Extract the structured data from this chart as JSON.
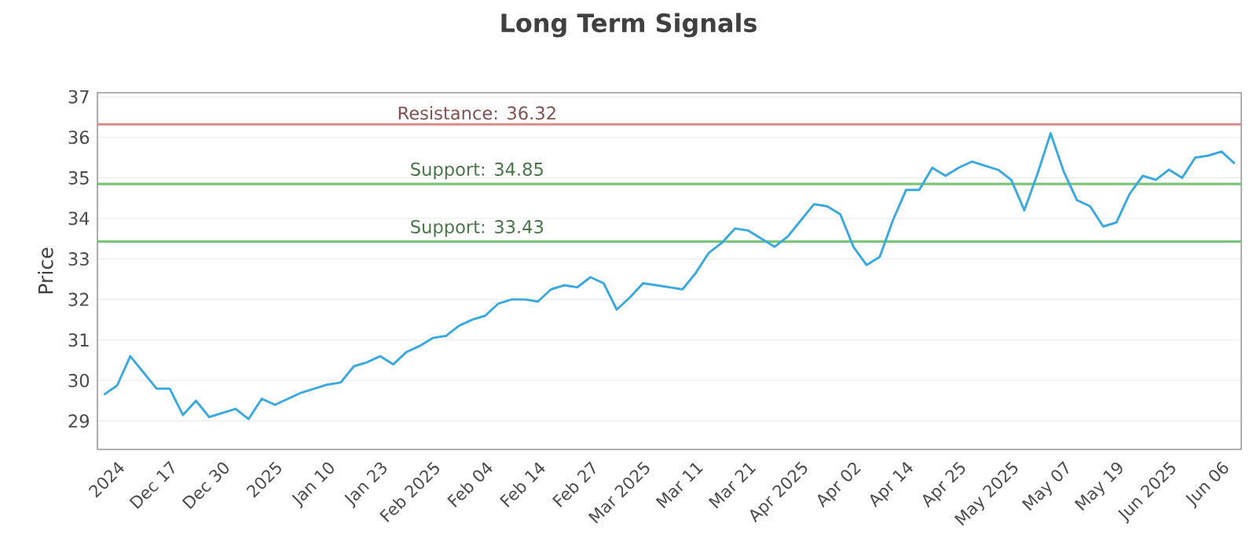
{
  "chart_data": {
    "type": "line",
    "title": "Long Term Signals",
    "ylabel": "Price",
    "categories": [
      null,
      "2024",
      null,
      null,
      null,
      "Dec 17",
      null,
      null,
      null,
      "Dec 30",
      null,
      null,
      null,
      "2025",
      null,
      null,
      null,
      "Jan 10",
      null,
      null,
      null,
      "Jan 23",
      null,
      null,
      null,
      "Feb 2025",
      null,
      null,
      null,
      "Feb 04",
      null,
      null,
      null,
      "Feb 14",
      null,
      null,
      null,
      "Feb 27",
      null,
      null,
      null,
      "Mar 2025",
      null,
      null,
      null,
      "Mar 11",
      null,
      null,
      null,
      "Mar 21",
      null,
      null,
      null,
      "Apr 2025",
      null,
      null,
      null,
      "Apr 02",
      null,
      null,
      null,
      "Apr 14",
      null,
      null,
      null,
      "Apr 25",
      null,
      null,
      null,
      "May 2025",
      null,
      null,
      null,
      "May 07",
      null,
      null,
      null,
      "May 19",
      null,
      null,
      null,
      "Jun 2025",
      null,
      null,
      null,
      "Jun 06",
      null
    ],
    "series": [
      {
        "color": "#3aa9e0",
        "values": [
          29.65,
          29.88,
          30.6,
          30.2,
          29.8,
          29.8,
          29.15,
          29.5,
          29.1,
          29.2,
          29.3,
          29.05,
          29.55,
          29.4,
          29.55,
          29.7,
          29.8,
          29.9,
          29.95,
          30.35,
          30.45,
          30.6,
          30.4,
          30.7,
          30.85,
          31.05,
          31.1,
          31.35,
          31.5,
          31.6,
          31.9,
          32.0,
          32.0,
          31.95,
          32.25,
          32.35,
          32.3,
          32.55,
          32.4,
          31.75,
          32.05,
          32.4,
          32.35,
          32.3,
          32.25,
          32.65,
          33.15,
          33.4,
          33.75,
          33.7,
          33.5,
          33.3,
          33.55,
          33.95,
          34.35,
          34.3,
          34.1,
          33.3,
          32.85,
          33.05,
          33.95,
          34.7,
          34.7,
          35.25,
          35.05,
          35.25,
          35.4,
          35.3,
          35.2,
          34.95,
          34.2,
          35.1,
          36.1,
          35.15,
          34.45,
          34.3,
          33.8,
          33.9,
          34.6,
          35.05,
          34.95,
          35.2,
          35.0,
          35.5,
          35.55,
          35.65,
          35.35
        ]
      }
    ],
    "ylim": [
      28.3,
      37.1
    ],
    "yticks": [
      29,
      30,
      31,
      32,
      33,
      34,
      35,
      36,
      37
    ],
    "grid": "y",
    "marker": "none",
    "line_style": "solid",
    "ref_lines": [
      {
        "axis": "y",
        "value": 36.32,
        "label": "Resistance: 36.32",
        "color": "#d98a8a"
      },
      {
        "axis": "y",
        "value": 34.85,
        "label": "Support: 34.85",
        "color": "#7cc47c"
      },
      {
        "axis": "y",
        "value": 33.43,
        "label": "Support: 33.43",
        "color": "#7cc47c"
      }
    ]
  }
}
